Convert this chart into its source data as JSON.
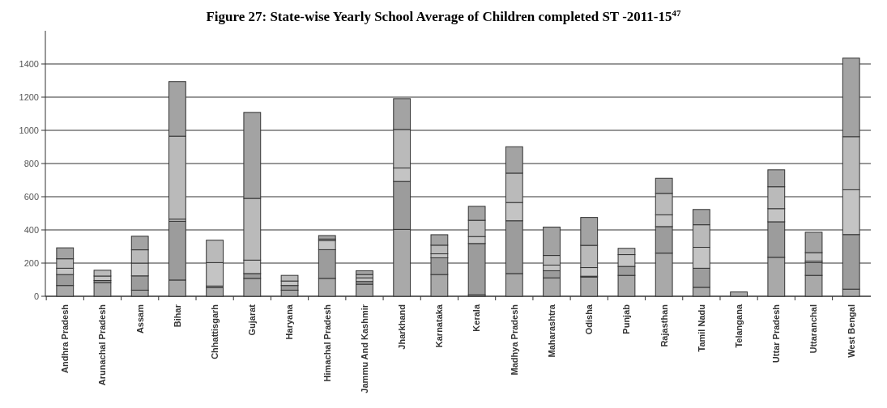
{
  "chart_data": {
    "type": "bar",
    "stacked": true,
    "title": "Figure 27:  State-wise Yearly School Average of Children completed ST -2011-15$^{47}$",
    "categories": [
      "Andhra Pradesh",
      "Arunachal Pradesh",
      "Assam",
      "Bihar",
      "Chhattisgarh",
      "Gujarat",
      "Haryana",
      "Himachal Pradesh",
      "Jammu And Kashmir",
      "Jharkhand",
      "Karnataka",
      "Kerala",
      "Madhya Pradesh",
      "Maharashtra",
      "Odisha",
      "Punjab",
      "Rajasthan",
      "Tamil Nadu",
      "Telangana",
      "Uttar Pradesh",
      "Uttaranchal",
      "West Bengal"
    ],
    "series": [
      {
        "color": "#a9a9a9",
        "values": [
          65,
          83,
          37,
          98,
          52,
          108,
          37,
          108,
          73,
          403,
          131,
          9,
          137,
          111,
          116,
          126,
          260,
          54,
          26,
          235,
          126,
          43
        ]
      },
      {
        "color": "#9c9c9c",
        "values": [
          66,
          12,
          86,
          354,
          10,
          29,
          28,
          173,
          16,
          289,
          101,
          309,
          318,
          43,
          5,
          54,
          160,
          115,
          null,
          214,
          77,
          329
        ]
      },
      {
        "color": "#c4c4c4",
        "values": [
          38,
          27,
          77,
          13,
          141,
          81,
          27,
          55,
          22,
          81,
          24,
          42,
          110,
          34,
          52,
          71,
          71,
          126,
          null,
          79,
          9,
          270
        ]
      },
      {
        "color": "#bababa",
        "values": [
          57,
          35,
          80,
          500,
          135,
          372,
          34,
          9,
          20,
          232,
          52,
          98,
          177,
          58,
          134,
          38,
          129,
          136,
          null,
          132,
          51,
          320
        ]
      },
      {
        "color": "#a3a3a3",
        "values": [
          66,
          null,
          82,
          329,
          null,
          518,
          null,
          21,
          23,
          186,
          63,
          84,
          159,
          171,
          168,
          null,
          91,
          92,
          null,
          102,
          123,
          473
        ]
      }
    ],
    "ylim": [
      0,
      1600
    ],
    "yticks": [
      0,
      200,
      400,
      600,
      800,
      1000,
      1200,
      1400
    ],
    "grid": "y"
  }
}
